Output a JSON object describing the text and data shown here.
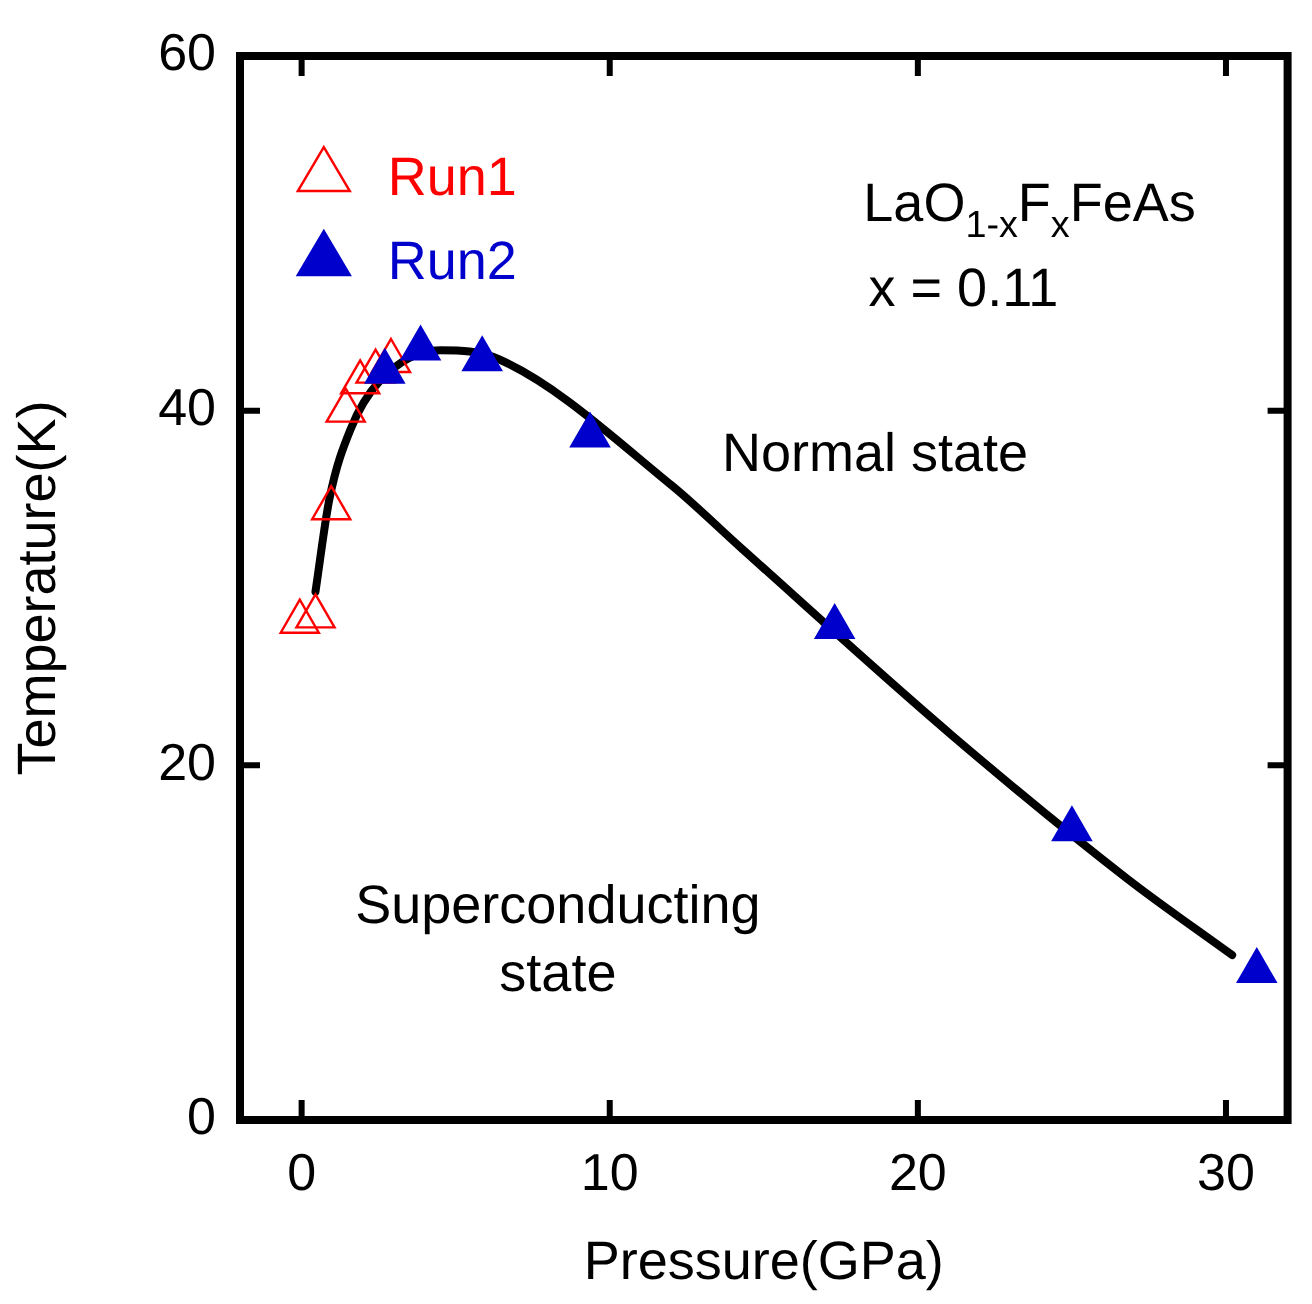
{
  "chart_data": {
    "type": "scatter",
    "xlabel": "Pressure(GPa)",
    "ylabel": "Temperature(K)",
    "xlim": [
      -2,
      32
    ],
    "xticks": [
      0,
      10,
      20,
      30
    ],
    "ylim": [
      0,
      60
    ],
    "yticks": [
      0,
      20,
      40,
      60
    ],
    "grid": false,
    "legend": "top left",
    "marker": "triangle",
    "annotations": [
      "LaO$_{1-x}$F$_{x}$FeAs",
      "x = 0.11",
      "Normal state",
      "Superconducting state"
    ],
    "series": [
      {
        "name": "Run1",
        "color": "#ff0000",
        "x": [
          -0.06,
          0.45,
          0.96,
          1.43,
          1.9,
          2.4,
          2.9
        ],
        "values": [
          28.1,
          28.4,
          34.5,
          40,
          41.6,
          42.2,
          42.8
        ]
      },
      {
        "name": "Run2",
        "color": "#0000cc",
        "x": [
          2.7,
          3.86,
          5.86,
          9.36,
          17.3,
          25.0,
          31.0
        ],
        "values": [
          42.2,
          43.5,
          42.9,
          38.6,
          27.8,
          16.4,
          8.4
        ]
      },
      {
        "type": "line",
        "marker": "none",
        "color": "#000000",
        "x": [
          0.45,
          0.9,
          1.6,
          2.5,
          4.5,
          6.4,
          12,
          14.3,
          21.1,
          26.8,
          30.2
        ],
        "values": [
          29.8,
          35,
          39,
          41.6,
          43.4,
          42.9,
          35.8,
          32.2,
          21.7,
          13.6,
          9.3
        ]
      }
    ]
  }
}
